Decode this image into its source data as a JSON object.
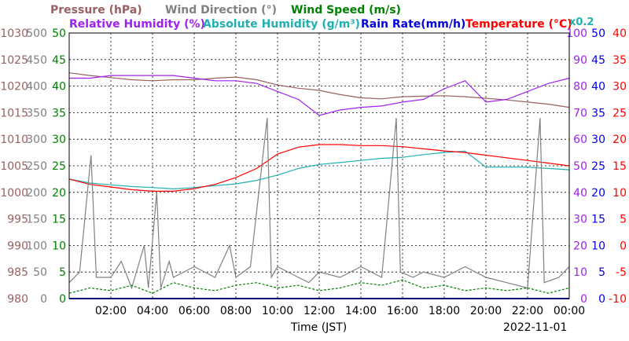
{
  "header": {
    "pressure": "Pressure (hPa)",
    "wind_dir": "Wind Direction (°)",
    "wind_speed": "Wind Speed (m/s)",
    "humidity": "Relative Humidity (%)",
    "abs_humidity": "Absolute Humidity (g/m³)",
    "rain": "Rain Rate(mm/h)",
    "temperature": "Temperature (°C)",
    "abs_factor": "x0.2"
  },
  "colors": {
    "pressure": "#9a6060",
    "wind_dir": "#808080",
    "wind_speed": "#008000",
    "humidity": "#a020f0",
    "abs_humidity": "#20b0b0",
    "rain": "#0000e0",
    "temperature": "#ff0000",
    "grid": "#000000"
  },
  "footer": {
    "xlabel": "Time (JST)",
    "date": "2022-11-01"
  },
  "chart_data": {
    "type": "line",
    "grid": true,
    "x_range_hours": [
      0,
      24
    ],
    "x_ticks": [
      "02:00",
      "04:00",
      "06:00",
      "08:00",
      "10:00",
      "12:00",
      "14:00",
      "16:00",
      "18:00",
      "20:00",
      "22:00",
      "00:00"
    ],
    "axes": {
      "pressure": {
        "ticks": [
          "1030",
          "1025",
          "1020",
          "1015",
          "1010",
          "1005",
          "1000",
          "995",
          "990",
          "985",
          "980"
        ],
        "ylim": [
          980,
          1030
        ]
      },
      "wind_dir": {
        "ticks": [
          "500",
          "450",
          "400",
          "350",
          "300",
          "250",
          "200",
          "150",
          "100",
          "50",
          "0"
        ],
        "ylim": [
          0,
          500
        ]
      },
      "wind_speed": {
        "ticks": [
          "50",
          "45",
          "40",
          "35",
          "30",
          "25",
          "20",
          "15",
          "10",
          "5",
          "0"
        ],
        "ylim": [
          0,
          50
        ]
      },
      "humidity": {
        "ticks": [
          "100",
          "90",
          "80",
          "70",
          "60",
          "50",
          "40",
          "30",
          "20",
          "10",
          "0"
        ],
        "ylim": [
          0,
          100
        ]
      },
      "rain": {
        "ticks": [
          "50",
          "45",
          "40",
          "35",
          "30",
          "25",
          "20",
          "15",
          "10",
          "5",
          "0"
        ],
        "ylim": [
          0,
          50
        ]
      },
      "temperature": {
        "ticks": [
          "40",
          "35",
          "30",
          "25",
          "20",
          "15",
          "10",
          "5",
          "0",
          "-5",
          "-10"
        ],
        "ylim": [
          -10,
          40
        ]
      }
    },
    "series": [
      {
        "name": "Pressure (hPa)",
        "axis": "pressure",
        "points": [
          [
            0,
            1022.5
          ],
          [
            1,
            1022
          ],
          [
            2,
            1021.6
          ],
          [
            3,
            1021.2
          ],
          [
            4,
            1021
          ],
          [
            5,
            1021.2
          ],
          [
            6,
            1021.2
          ],
          [
            7,
            1021.5
          ],
          [
            8,
            1021.7
          ],
          [
            9,
            1021.2
          ],
          [
            10,
            1020.2
          ],
          [
            11,
            1019.6
          ],
          [
            12,
            1019.2
          ],
          [
            13,
            1018.4
          ],
          [
            14,
            1017.8
          ],
          [
            15,
            1017.6
          ],
          [
            16,
            1018
          ],
          [
            17,
            1018.1
          ],
          [
            18,
            1018.2
          ],
          [
            19,
            1018
          ],
          [
            20,
            1017.7
          ],
          [
            21,
            1017.4
          ],
          [
            22,
            1017
          ],
          [
            23,
            1016.6
          ],
          [
            24,
            1016
          ]
        ]
      },
      {
        "name": "Relative Humidity (%)",
        "axis": "humidity",
        "points": [
          [
            0,
            83
          ],
          [
            1,
            83
          ],
          [
            2,
            84
          ],
          [
            3,
            84
          ],
          [
            4,
            84
          ],
          [
            5,
            84
          ],
          [
            6,
            83
          ],
          [
            7,
            82
          ],
          [
            8,
            82
          ],
          [
            9,
            81
          ],
          [
            10,
            78
          ],
          [
            11,
            75
          ],
          [
            12,
            69
          ],
          [
            13,
            71
          ],
          [
            14,
            72
          ],
          [
            15,
            72.5
          ],
          [
            16,
            74
          ],
          [
            17,
            75
          ],
          [
            18,
            79
          ],
          [
            19,
            82
          ],
          [
            20,
            74
          ],
          [
            21,
            75
          ],
          [
            22,
            78
          ],
          [
            23,
            81
          ],
          [
            24,
            83
          ]
        ]
      },
      {
        "name": "Absolute Humidity (g/m³)",
        "axis": "humidity",
        "points": [
          [
            0,
            45
          ],
          [
            1,
            43.5
          ],
          [
            2,
            42.8
          ],
          [
            3,
            42.2
          ],
          [
            4,
            41.8
          ],
          [
            5,
            41.3
          ],
          [
            6,
            41.8
          ],
          [
            7,
            42.5
          ],
          [
            8,
            43.2
          ],
          [
            9,
            44.5
          ],
          [
            10,
            46.5
          ],
          [
            11,
            49
          ],
          [
            12,
            50.5
          ],
          [
            13,
            51.2
          ],
          [
            14,
            52
          ],
          [
            15,
            52.8
          ],
          [
            16,
            53.2
          ],
          [
            17,
            54.2
          ],
          [
            18,
            55
          ],
          [
            19,
            55.5
          ],
          [
            20,
            49.5
          ],
          [
            21,
            49.5
          ],
          [
            22,
            49.5
          ],
          [
            23,
            49
          ],
          [
            24,
            48.5
          ]
        ]
      },
      {
        "name": "Temperature (°C)",
        "axis": "temperature",
        "points": [
          [
            0,
            12.5
          ],
          [
            1,
            11.5
          ],
          [
            2,
            11
          ],
          [
            3,
            10.5
          ],
          [
            4,
            10.2
          ],
          [
            5,
            10.2
          ],
          [
            6,
            10.7
          ],
          [
            7,
            11.5
          ],
          [
            8,
            12.8
          ],
          [
            9,
            14.5
          ],
          [
            10,
            17.2
          ],
          [
            11,
            18.5
          ],
          [
            12,
            19
          ],
          [
            13,
            19
          ],
          [
            14,
            18.8
          ],
          [
            15,
            18.8
          ],
          [
            16,
            18.6
          ],
          [
            17,
            18.2
          ],
          [
            18,
            17.8
          ],
          [
            19,
            17.5
          ],
          [
            20,
            17
          ],
          [
            21,
            16.5
          ],
          [
            22,
            16
          ],
          [
            23,
            15.5
          ],
          [
            24,
            15
          ]
        ]
      },
      {
        "name": "Wind Direction (°)",
        "axis": "wind_dir",
        "points": [
          [
            0,
            30
          ],
          [
            0.5,
            50
          ],
          [
            1.05,
            270
          ],
          [
            1.3,
            40
          ],
          [
            2,
            40
          ],
          [
            2.5,
            70
          ],
          [
            3,
            20
          ],
          [
            3.6,
            100
          ],
          [
            3.8,
            20
          ],
          [
            4.2,
            200
          ],
          [
            4.4,
            20
          ],
          [
            4.8,
            70
          ],
          [
            5,
            40
          ],
          [
            6,
            60
          ],
          [
            7,
            40
          ],
          [
            7.7,
            100
          ],
          [
            8,
            40
          ],
          [
            8.7,
            60
          ],
          [
            9.5,
            340
          ],
          [
            9.7,
            40
          ],
          [
            10,
            60
          ],
          [
            11,
            40
          ],
          [
            11.5,
            30
          ],
          [
            12,
            50
          ],
          [
            13,
            40
          ],
          [
            14,
            60
          ],
          [
            15,
            40
          ],
          [
            15.7,
            340
          ],
          [
            15.9,
            50
          ],
          [
            16.5,
            40
          ],
          [
            17,
            50
          ],
          [
            18,
            40
          ],
          [
            19,
            60
          ],
          [
            20,
            40
          ],
          [
            21,
            30
          ],
          [
            22,
            20
          ],
          [
            22.6,
            340
          ],
          [
            22.8,
            30
          ],
          [
            23.5,
            40
          ],
          [
            24,
            60
          ]
        ]
      },
      {
        "name": "Wind Speed (m/s)",
        "axis": "wind_speed",
        "points": [
          [
            0,
            1
          ],
          [
            1,
            2
          ],
          [
            2,
            1.5
          ],
          [
            3,
            2.5
          ],
          [
            4,
            1
          ],
          [
            5,
            3
          ],
          [
            6,
            2
          ],
          [
            7,
            1.5
          ],
          [
            8,
            2.5
          ],
          [
            9,
            3
          ],
          [
            10,
            2
          ],
          [
            11,
            2.5
          ],
          [
            12,
            1.5
          ],
          [
            13,
            2
          ],
          [
            14,
            3
          ],
          [
            15,
            2.5
          ],
          [
            16,
            3.5
          ],
          [
            17,
            2
          ],
          [
            18,
            2.5
          ],
          [
            19,
            1.5
          ],
          [
            20,
            2
          ],
          [
            21,
            1.5
          ],
          [
            22,
            2
          ],
          [
            23,
            1
          ],
          [
            24,
            2
          ]
        ]
      },
      {
        "name": "Rain Rate(mm/h)",
        "axis": "rain",
        "points": [
          [
            0,
            0
          ],
          [
            24,
            0
          ]
        ]
      }
    ]
  }
}
